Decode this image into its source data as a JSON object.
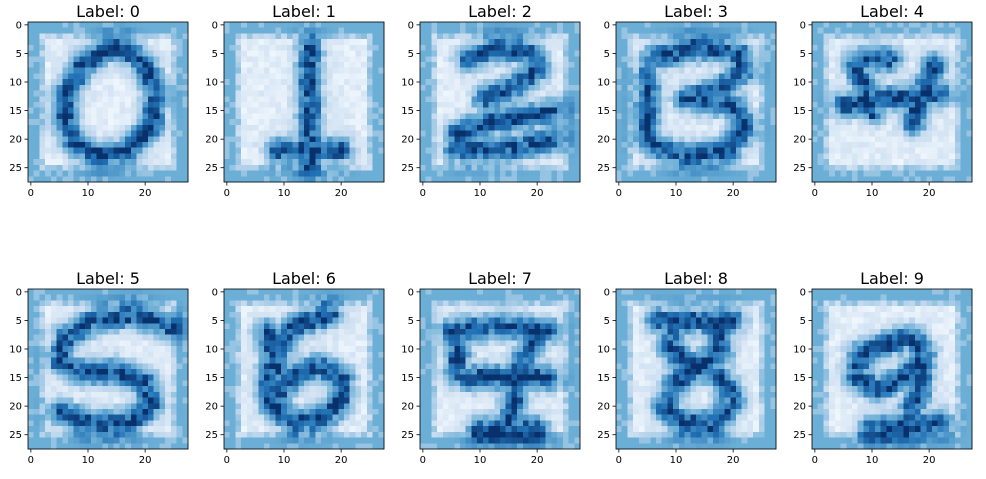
{
  "figure": {
    "panels": [
      {
        "title": "Label: 0",
        "digit": 0
      },
      {
        "title": "Label: 1",
        "digit": 1
      },
      {
        "title": "Label: 2",
        "digit": 2
      },
      {
        "title": "Label: 3",
        "digit": 3
      },
      {
        "title": "Label: 4",
        "digit": 4
      },
      {
        "title": "Label: 5",
        "digit": 5
      },
      {
        "title": "Label: 6",
        "digit": 6
      },
      {
        "title": "Label: 7",
        "digit": 7
      },
      {
        "title": "Label: 8",
        "digit": 8
      },
      {
        "title": "Label: 9",
        "digit": 9
      }
    ]
  },
  "chart_data": {
    "type": "heatmap",
    "grid": {
      "rows": 2,
      "cols": 5
    },
    "image_size": [
      28,
      28
    ],
    "colormap": "Blues",
    "colors": {
      "low": "#f7fbff",
      "mid": "#6baed6",
      "high": "#08306b",
      "background": "#6baed6"
    },
    "x_ticks": [
      "0",
      "10",
      "20"
    ],
    "y_ticks": [
      "0",
      "5",
      "10",
      "15",
      "20",
      "25"
    ],
    "x_tick_values": [
      0,
      10,
      20
    ],
    "y_tick_values": [
      0,
      5,
      10,
      15,
      20,
      25
    ],
    "xlim": [
      -0.5,
      27.5
    ],
    "ylim": [
      27.5,
      -0.5
    ]
  }
}
